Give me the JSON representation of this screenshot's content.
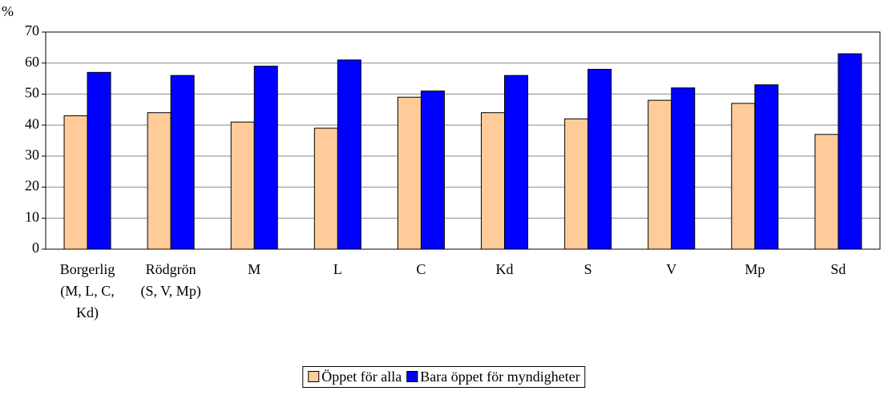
{
  "chart_data": {
    "type": "bar",
    "y_label": "%",
    "categories": [
      "Borgerlig (M, L, C, Kd)",
      "Rödgrön (S, V, Mp)",
      "M",
      "L",
      "C",
      "Kd",
      "S",
      "V",
      "Mp",
      "Sd"
    ],
    "series": [
      {
        "name": "Öppet för alla",
        "color": "#ffcc99",
        "values": [
          43,
          44,
          41,
          39,
          49,
          44,
          42,
          48,
          47,
          37
        ]
      },
      {
        "name": "Bara öppet för myndigheter",
        "color": "#0000ff",
        "values": [
          57,
          56,
          59,
          61,
          51,
          56,
          58,
          52,
          53,
          63
        ]
      }
    ],
    "ylim": [
      0,
      70
    ],
    "yticks": [
      0,
      10,
      20,
      30,
      40,
      50,
      60,
      70
    ],
    "grid": true,
    "legend": "bottom"
  }
}
